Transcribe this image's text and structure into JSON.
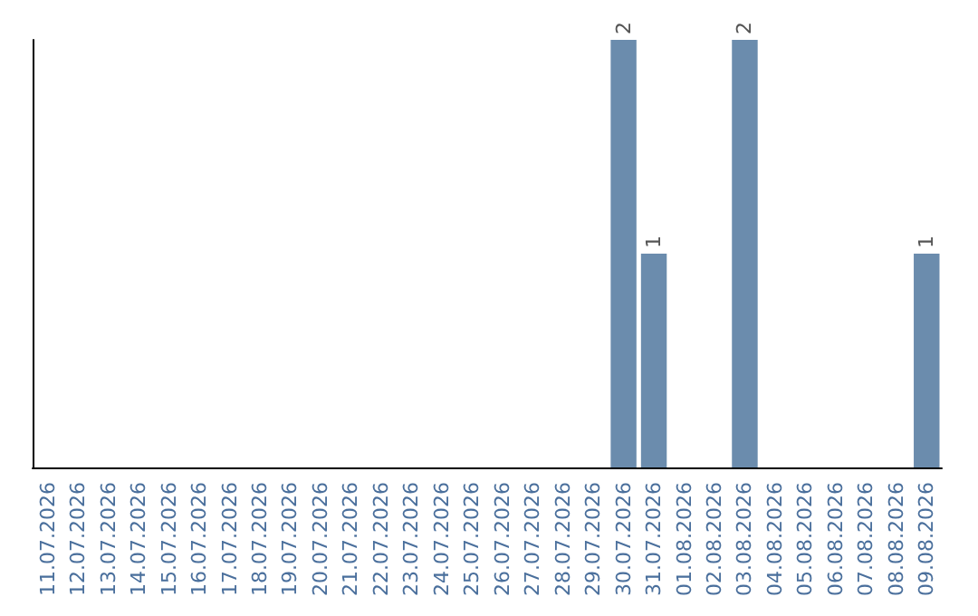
{
  "chart_data": {
    "type": "bar",
    "categories": [
      "11.07.2026",
      "12.07.2026",
      "13.07.2026",
      "14.07.2026",
      "15.07.2026",
      "16.07.2026",
      "17.07.2026",
      "18.07.2026",
      "19.07.2026",
      "20.07.2026",
      "21.07.2026",
      "22.07.2026",
      "23.07.2026",
      "24.07.2026",
      "25.07.2026",
      "26.07.2026",
      "27.07.2026",
      "28.07.2026",
      "29.07.2026",
      "30.07.2026",
      "31.07.2026",
      "01.08.2026",
      "02.08.2026",
      "03.08.2026",
      "04.08.2026",
      "05.08.2026",
      "06.08.2026",
      "07.08.2026",
      "08.08.2026",
      "09.08.2026"
    ],
    "values": [
      null,
      null,
      null,
      null,
      null,
      null,
      null,
      null,
      null,
      null,
      null,
      null,
      null,
      null,
      null,
      null,
      null,
      null,
      null,
      2,
      1,
      null,
      null,
      2,
      null,
      null,
      null,
      null,
      null,
      1
    ],
    "data_labels": true,
    "color": "#6b8cad",
    "grid": false,
    "tick_labels": "x"
  }
}
